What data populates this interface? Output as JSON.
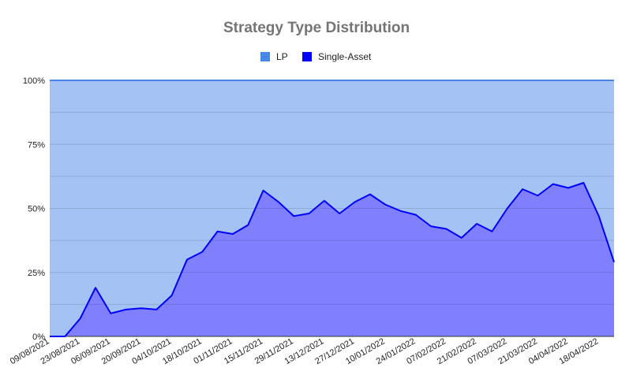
{
  "chart_data": {
    "type": "area",
    "stacked": true,
    "percent_stacked": true,
    "title": "Strategy Type Distribution",
    "legend_position": "top",
    "grid": true,
    "ylim": [
      0,
      100
    ],
    "y_ticks": [
      "0%",
      "25%",
      "50%",
      "75%",
      "100%"
    ],
    "x": [
      "09/08/2021",
      "16/08/2021",
      "23/08/2021",
      "30/08/2021",
      "06/09/2021",
      "13/09/2021",
      "20/09/2021",
      "27/09/2021",
      "04/10/2021",
      "11/10/2021",
      "18/10/2021",
      "25/10/2021",
      "01/11/2021",
      "08/11/2021",
      "15/11/2021",
      "22/11/2021",
      "29/11/2021",
      "06/12/2021",
      "13/12/2021",
      "20/12/2021",
      "27/12/2021",
      "03/01/2022",
      "10/01/2022",
      "17/01/2022",
      "24/01/2022",
      "31/01/2022",
      "07/02/2022",
      "14/02/2022",
      "21/02/2022",
      "28/02/2022",
      "07/03/2022",
      "14/03/2022",
      "21/03/2022",
      "28/03/2022",
      "04/04/2022",
      "11/04/2022",
      "18/04/2022",
      "25/04/2022"
    ],
    "x_tick_labels": [
      "09/08/2021",
      "23/08/2021",
      "06/09/2021",
      "20/09/2021",
      "04/10/2021",
      "18/10/2021",
      "01/11/2021",
      "15/11/2021",
      "29/11/2021",
      "13/12/2021",
      "27/12/2021",
      "10/01/2022",
      "24/01/2022",
      "07/02/2022",
      "21/02/2022",
      "07/03/2022",
      "21/03/2022",
      "04/04/2022",
      "18/04/2022"
    ],
    "series": [
      {
        "name": "Single-Asset",
        "color": "#0000ff",
        "fill": "#8080ff",
        "values": [
          0,
          0,
          7,
          19,
          9,
          10.5,
          11,
          10.5,
          16,
          30,
          33,
          41,
          40,
          43.5,
          57,
          52.5,
          47,
          48,
          53,
          48,
          52.5,
          55.5,
          51.5,
          49,
          47.5,
          43,
          42,
          38.5,
          44,
          41,
          50,
          57.5,
          55,
          59.5,
          58,
          60,
          47,
          29
        ]
      },
      {
        "name": "LP",
        "color": "#4a86e8",
        "fill": "#a4c2f4",
        "values": [
          100,
          100,
          93,
          81,
          91,
          89.5,
          89,
          89.5,
          84,
          70,
          67,
          59,
          60,
          56.5,
          43,
          47.5,
          53,
          52,
          47,
          52,
          47.5,
          44.5,
          48.5,
          51,
          52.5,
          57,
          58,
          61.5,
          56,
          59,
          50,
          42.5,
          45,
          40.5,
          42,
          40,
          53,
          71
        ]
      }
    ]
  }
}
